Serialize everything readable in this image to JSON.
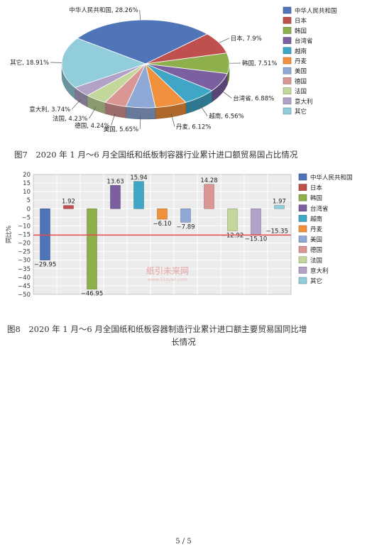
{
  "chart_data": [
    {
      "type": "pie",
      "categories": [
        "中华人民共和国",
        "日本",
        "韩国",
        "台湾省",
        "越南",
        "丹麦",
        "美国",
        "德国",
        "法国",
        "意大利",
        "其它"
      ],
      "slice_labels": [
        "中华人民共和国, 28.26%",
        "日本, 7.9%",
        "韩国, 7.51%",
        "台湾省, 6.88%",
        "越南, 6.56%",
        "丹麦, 6.12%",
        "美国, 5.65%",
        "德国, 4.24%",
        "法国, 4.23%",
        "意大利, 3.74%",
        "其它, 18.91%"
      ],
      "values": [
        28.26,
        7.9,
        7.51,
        6.88,
        6.56,
        6.12,
        5.65,
        4.24,
        4.23,
        3.74,
        18.91
      ],
      "colors": [
        "#4f74b7",
        "#c0504d",
        "#8db04d",
        "#7b5fa0",
        "#3fa7c5",
        "#f2913d",
        "#8fa9d6",
        "#d99694",
        "#c3d69b",
        "#b2a2c7",
        "#92cddc"
      ],
      "legend_position": "right"
    },
    {
      "type": "bar",
      "categories": [
        "中华人民共和国",
        "日本",
        "韩国",
        "台湾省",
        "越南",
        "丹麦",
        "美国",
        "德国",
        "法国",
        "意大利",
        "其它"
      ],
      "values": [
        -29.95,
        1.92,
        -46.95,
        13.63,
        15.94,
        -6.1,
        -7.89,
        14.28,
        -12.92,
        -15.1,
        1.97
      ],
      "value_labels": [
        "−29.95",
        "1.92",
        "−46.95",
        "13.63",
        "15.94",
        "−6.10",
        "−7.89",
        "14.28",
        "−12.92",
        "−15.10",
        "1.97"
      ],
      "colors": [
        "#4f74b7",
        "#c0504d",
        "#8db04d",
        "#7b5fa0",
        "#3fa7c5",
        "#f2913d",
        "#8fa9d6",
        "#d99694",
        "#c3d69b",
        "#b2a2c7",
        "#92cddc"
      ],
      "ylabel": "同比%",
      "ylim": [
        -50,
        20
      ],
      "yticks": [
        "20",
        "15",
        "10",
        "5",
        "0",
        "−5",
        "−10",
        "−15",
        "−20",
        "−25",
        "−30",
        "−35",
        "−40",
        "−45",
        "−50"
      ],
      "reference_line": {
        "value": -15.35,
        "label": "−15.35",
        "color": "#e05050"
      },
      "grid": true,
      "legend_position": "right",
      "watermark": "纸引未来网",
      "watermark_url": "www.51zywl.com"
    }
  ],
  "captions": {
    "fig7": "图7　2020 年 1 月～6 月全国纸和纸板制容器行业累计进口额贸易国占比情况",
    "fig8_line1": "图8　2020 年 1 月～6 月全国纸和纸板容器制造行业累计进口额主要贸易国同比增",
    "fig8_line2": "长情况"
  },
  "page_number": "5 / 5"
}
